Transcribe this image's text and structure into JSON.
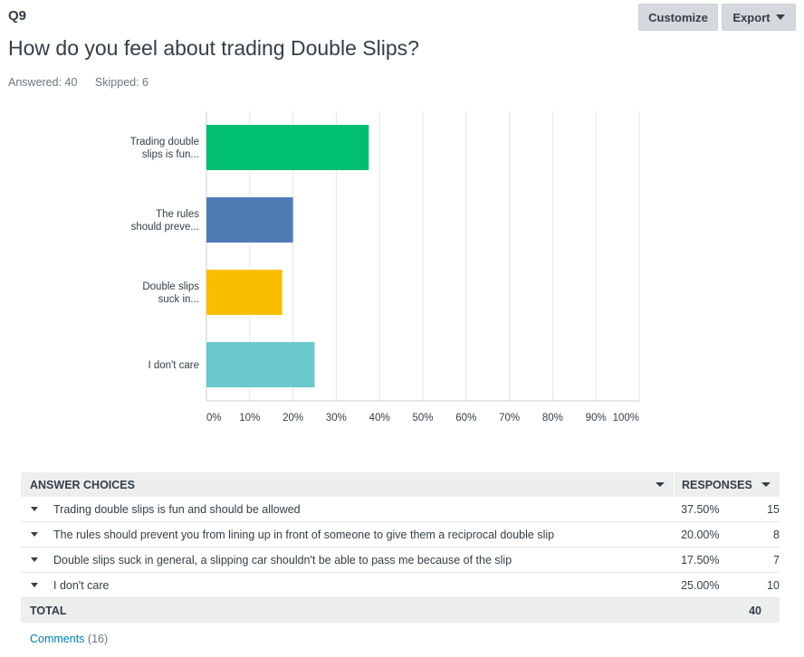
{
  "question": {
    "number": "Q9",
    "title": "How do you feel about trading Double Slips?",
    "answered": "Answered: 40",
    "skipped": "Skipped: 6"
  },
  "toolbar": {
    "customize_label": "Customize",
    "export_label": "Export"
  },
  "chart_data": {
    "type": "bar",
    "orientation": "horizontal",
    "categories": [
      [
        "Trading double",
        "slips is fun..."
      ],
      [
        "The rules",
        "should preve..."
      ],
      [
        "Double slips",
        "suck in..."
      ],
      [
        "I don't care"
      ]
    ],
    "values": [
      37.5,
      20.0,
      17.5,
      25.0
    ],
    "colors": [
      "#00bf6f",
      "#507cb6",
      "#f9be00",
      "#6bc8cd"
    ],
    "xlim": [
      0,
      100
    ],
    "xticks": [
      "0%",
      "10%",
      "20%",
      "30%",
      "40%",
      "50%",
      "60%",
      "70%",
      "80%",
      "90%",
      "100%"
    ],
    "grid": true,
    "legend": "none"
  },
  "table": {
    "header_choices": "ANSWER CHOICES",
    "header_responses": "RESPONSES",
    "rows": [
      {
        "label": "Trading double slips is fun and should be allowed",
        "pct": "37.50%",
        "count": "15"
      },
      {
        "label": "The rules should prevent you from lining up in front of someone to give them a reciprocal double slip",
        "pct": "20.00%",
        "count": "8"
      },
      {
        "label": "Double slips suck in general, a slipping car shouldn't be able to pass me because of the slip",
        "pct": "17.50%",
        "count": "7"
      },
      {
        "label": "I don't care",
        "pct": "25.00%",
        "count": "10"
      }
    ],
    "total_label": "TOTAL",
    "total_value": "40"
  },
  "comments": {
    "link": "Comments",
    "count": "(16)"
  }
}
